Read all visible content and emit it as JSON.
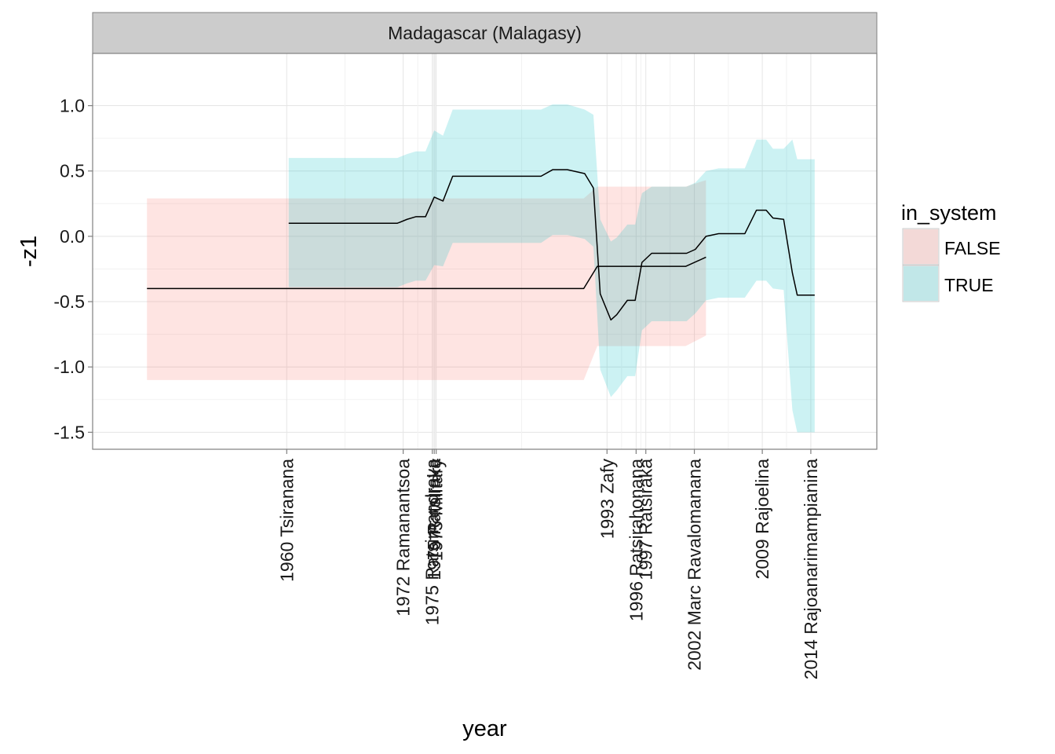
{
  "chart_data": {
    "type": "line",
    "facet_title": "Madagascar (Malagasy)",
    "xlabel": "year",
    "ylabel": "-z1",
    "xlim": [
      1940.0,
      2020.8
    ],
    "ylim": [
      -1.63,
      1.4
    ],
    "y_ticks": [
      {
        "value": 1.0,
        "label": "1.0"
      },
      {
        "value": 0.5,
        "label": "0.5"
      },
      {
        "value": 0.0,
        "label": "0.0"
      },
      {
        "value": -0.5,
        "label": "-0.5"
      },
      {
        "value": -1.0,
        "label": "-1.0"
      },
      {
        "value": -1.5,
        "label": "-1.5"
      }
    ],
    "x_ticks": [
      {
        "value": 1960.0,
        "label": "1960 Tsiranana"
      },
      {
        "value": 1972.0,
        "label": "1972 Ramanantsoa"
      },
      {
        "value": 1975.0,
        "label": "1975 Ratsimandrava"
      },
      {
        "value": 1975.2,
        "label": "1975 Ratsiraka"
      },
      {
        "value": 1975.4,
        "label": "1975 Military"
      },
      {
        "value": 1993.0,
        "label": "1993 Zafy"
      },
      {
        "value": 1996.0,
        "label": "1996 Ratsirahonana"
      },
      {
        "value": 1997.0,
        "label": "1997 Ratsiraka"
      },
      {
        "value": 2002.0,
        "label": "2002 Marc Ravalomanana"
      },
      {
        "value": 2009.0,
        "label": "2009 Rajoelina"
      },
      {
        "value": 2014.0,
        "label": "2014 Rajoanarimampianina"
      }
    ],
    "grid": true,
    "legend": {
      "title": "in_system",
      "position": "right",
      "entries": [
        {
          "label": "FALSE",
          "color": "#F8766D"
        },
        {
          "label": "TRUE",
          "color": "#00BFC4"
        }
      ]
    },
    "series": [
      {
        "name": "FALSE",
        "color": "#F8766D",
        "x": [
          1945.6,
          1990.5,
          1990.6,
          1992.0,
          1992.1,
          2001.0,
          2001.1,
          2003.2
        ],
        "y": [
          -0.4,
          -0.4,
          -0.4,
          -0.23,
          -0.23,
          -0.23,
          -0.23,
          -0.16
        ],
        "lower": [
          -1.1,
          -1.1,
          -1.1,
          -0.84,
          -0.84,
          -0.84,
          -0.84,
          -0.76
        ],
        "upper": [
          0.29,
          0.29,
          0.29,
          0.38,
          0.38,
          0.38,
          0.38,
          0.43
        ]
      },
      {
        "name": "TRUE",
        "color": "#00BFC4",
        "x": [
          1960.2,
          1971.4,
          1972.4,
          1973.3,
          1974.3,
          1975.2,
          1976.1,
          1977.1,
          1986.2,
          1987.4,
          1988.9,
          1990.7,
          1991.6,
          1992.3,
          1993.4,
          1994.0,
          1995.1,
          1995.9,
          1996.6,
          1997.6,
          1998.4,
          2001.2,
          2002.1,
          2003.2,
          2004.5,
          2007.2,
          2008.4,
          2009.4,
          2010.1,
          2011.2,
          2012.1,
          2012.6,
          2013.6,
          2014.4
        ],
        "y": [
          0.1,
          0.1,
          0.13,
          0.15,
          0.15,
          0.3,
          0.27,
          0.46,
          0.46,
          0.51,
          0.51,
          0.48,
          0.37,
          -0.44,
          -0.64,
          -0.6,
          -0.49,
          -0.49,
          -0.2,
          -0.13,
          -0.13,
          -0.13,
          -0.1,
          0.0,
          0.02,
          0.02,
          0.2,
          0.2,
          0.14,
          0.13,
          -0.28,
          -0.45,
          -0.45,
          -0.45
        ],
        "lower": [
          -0.39,
          -0.39,
          -0.36,
          -0.34,
          -0.34,
          -0.22,
          -0.23,
          -0.05,
          -0.05,
          0.01,
          0.01,
          -0.02,
          -0.08,
          -1.02,
          -1.23,
          -1.18,
          -1.07,
          -1.07,
          -0.72,
          -0.65,
          -0.65,
          -0.65,
          -0.59,
          -0.49,
          -0.47,
          -0.47,
          -0.34,
          -0.34,
          -0.4,
          -0.41,
          -1.33,
          -1.5,
          -1.5,
          -1.5
        ],
        "upper": [
          0.6,
          0.6,
          0.63,
          0.65,
          0.65,
          0.81,
          0.77,
          0.97,
          0.97,
          1.01,
          1.01,
          0.97,
          0.93,
          0.13,
          -0.04,
          -0.01,
          0.09,
          0.09,
          0.33,
          0.38,
          0.38,
          0.38,
          0.41,
          0.5,
          0.52,
          0.52,
          0.74,
          0.74,
          0.67,
          0.67,
          0.74,
          0.59,
          0.59,
          0.59
        ]
      }
    ]
  }
}
